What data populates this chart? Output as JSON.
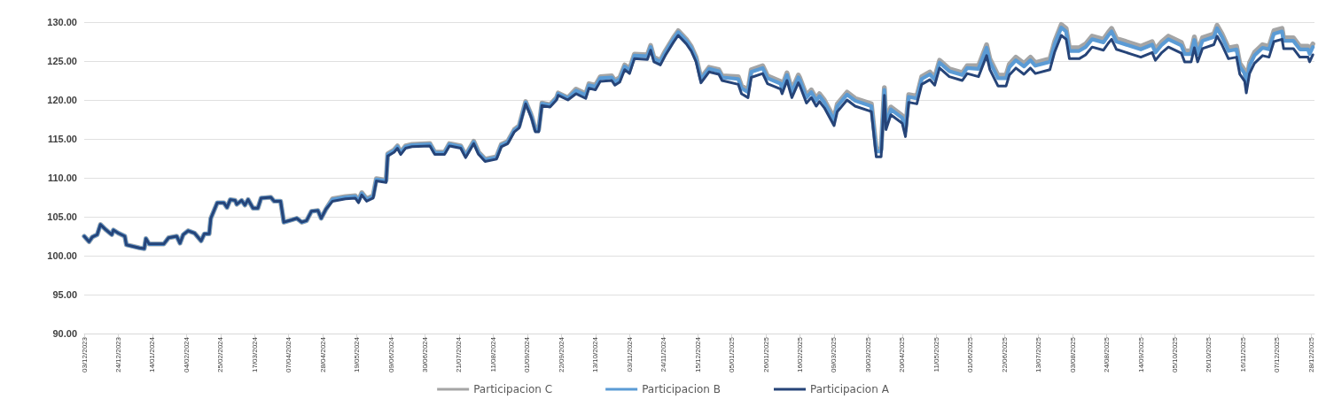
{
  "chart_data": {
    "type": "line",
    "x": [
      "2023-12-03",
      "2023-12-06",
      "2023-12-08",
      "2023-12-11",
      "2023-12-13",
      "2023-12-16",
      "2023-12-20",
      "2023-12-21",
      "2023-12-24",
      "2023-12-28",
      "2023-12-29",
      "2024-01-02",
      "2024-01-06",
      "2024-01-09",
      "2024-01-10",
      "2024-01-12",
      "2024-01-21",
      "2024-01-24",
      "2024-01-29",
      "2024-01-31",
      "2024-02-02",
      "2024-02-05",
      "2024-02-09",
      "2024-02-13",
      "2024-02-15",
      "2024-02-18",
      "2024-02-19",
      "2024-02-23",
      "2024-02-27",
      "2024-02-29",
      "2024-03-02",
      "2024-03-05",
      "2024-03-06",
      "2024-03-09",
      "2024-03-11",
      "2024-03-13",
      "2024-03-16",
      "2024-03-19",
      "2024-03-21",
      "2024-03-27",
      "2024-03-29",
      "2024-04-02",
      "2024-04-04",
      "2024-04-09",
      "2024-04-12",
      "2024-04-15",
      "2024-04-18",
      "2024-04-21",
      "2024-04-25",
      "2024-04-27",
      "2024-04-30",
      "2024-05-04",
      "2024-05-12",
      "2024-05-18",
      "2024-05-20",
      "2024-05-22",
      "2024-05-25",
      "2024-05-29",
      "2024-05-31",
      "2024-06-06",
      "2024-06-07",
      "2024-06-11",
      "2024-06-13",
      "2024-06-15",
      "2024-06-18",
      "2024-06-22",
      "2024-07-03",
      "2024-07-06",
      "2024-07-12",
      "2024-07-15",
      "2024-07-22",
      "2024-07-25",
      "2024-07-30",
      "2024-08-02",
      "2024-08-06",
      "2024-08-13",
      "2024-08-16",
      "2024-08-20",
      "2024-08-24",
      "2024-08-27",
      "2024-08-31",
      "2024-09-03",
      "2024-09-04",
      "2024-09-06",
      "2024-09-08",
      "2024-09-10",
      "2024-09-15",
      "2024-09-19",
      "2024-09-20",
      "2024-09-26",
      "2024-10-01",
      "2024-10-07",
      "2024-10-09",
      "2024-10-13",
      "2024-10-16",
      "2024-10-23",
      "2024-10-25",
      "2024-10-28",
      "2024-10-31",
      "2024-11-03",
      "2024-11-06",
      "2024-11-14",
      "2024-11-16",
      "2024-11-18",
      "2024-11-22",
      "2024-11-25",
      "2024-11-30",
      "2024-12-03",
      "2024-12-08",
      "2024-12-11",
      "2024-12-14",
      "2024-12-17",
      "2024-12-22",
      "2024-12-28",
      "2024-12-30",
      "2025-01-09",
      "2025-01-11",
      "2025-01-15",
      "2025-01-17",
      "2025-01-24",
      "2025-01-27",
      "2025-02-04",
      "2025-02-05",
      "2025-02-08",
      "2025-02-11",
      "2025-02-15",
      "2025-02-16",
      "2025-02-20",
      "2025-02-23",
      "2025-02-26",
      "2025-02-28",
      "2025-03-03",
      "2025-03-09",
      "2025-03-11",
      "2025-03-17",
      "2025-03-22",
      "2025-04-01",
      "2025-04-04",
      "2025-04-07",
      "2025-04-09",
      "2025-04-10",
      "2025-04-13",
      "2025-04-20",
      "2025-04-22",
      "2025-04-24",
      "2025-04-29",
      "2025-05-02",
      "2025-05-07",
      "2025-05-10",
      "2025-05-13",
      "2025-05-19",
      "2025-05-27",
      "2025-05-30",
      "2025-06-06",
      "2025-06-11",
      "2025-06-13",
      "2025-06-18",
      "2025-06-23",
      "2025-06-25",
      "2025-06-29",
      "2025-07-04",
      "2025-07-08",
      "2025-07-11",
      "2025-07-20",
      "2025-07-23",
      "2025-07-27",
      "2025-07-30",
      "2025-08-01",
      "2025-08-07",
      "2025-08-11",
      "2025-08-15",
      "2025-08-22",
      "2025-08-25",
      "2025-08-27",
      "2025-08-30",
      "2025-09-08",
      "2025-09-14",
      "2025-09-21",
      "2025-09-23",
      "2025-09-27",
      "2025-10-01",
      "2025-10-09",
      "2025-10-11",
      "2025-10-15",
      "2025-10-17",
      "2025-10-19",
      "2025-10-22",
      "2025-10-29",
      "2025-10-31",
      "2025-11-03",
      "2025-11-07",
      "2025-11-12",
      "2025-11-14",
      "2025-11-17",
      "2025-11-18",
      "2025-11-20",
      "2025-11-23",
      "2025-11-28",
      "2025-12-02",
      "2025-12-05",
      "2025-12-10",
      "2025-12-11",
      "2025-12-17",
      "2025-12-21",
      "2025-12-26",
      "2025-12-27",
      "2025-12-29"
    ],
    "series": [
      {
        "name": "Participacion C",
        "color": "#a5a5a5",
        "values": [
          102.5,
          101.8,
          102.4,
          102.7,
          104.0,
          103.4,
          102.7,
          103.3,
          102.9,
          102.5,
          101.4,
          101.2,
          101.0,
          100.9,
          102.2,
          101.5,
          101.5,
          102.3,
          102.5,
          101.6,
          102.7,
          103.2,
          102.9,
          101.9,
          102.8,
          102.8,
          104.8,
          106.8,
          106.8,
          106.2,
          107.2,
          107.1,
          106.6,
          107.1,
          106.5,
          107.2,
          106.1,
          106.1,
          107.4,
          107.5,
          107.0,
          107.0,
          104.3,
          104.6,
          104.8,
          104.3,
          104.5,
          105.7,
          105.8,
          104.8,
          106.0,
          107.3,
          107.6,
          107.7,
          107.1,
          108.1,
          107.3,
          107.7,
          109.9,
          109.7,
          113.1,
          113.6,
          114.1,
          113.3,
          114.1,
          114.3,
          114.4,
          113.3,
          113.3,
          114.4,
          114.1,
          112.9,
          114.7,
          113.3,
          112.4,
          112.7,
          114.3,
          114.7,
          116.2,
          116.7,
          119.8,
          118.3,
          117.7,
          116.2,
          116.2,
          119.6,
          119.4,
          120.3,
          120.9,
          120.3,
          121.4,
          120.8,
          122.1,
          121.9,
          123.0,
          123.1,
          122.5,
          122.9,
          124.5,
          124.0,
          125.9,
          125.8,
          127.0,
          125.5,
          125.1,
          126.3,
          128.0,
          128.9,
          127.8,
          126.9,
          125.5,
          122.8,
          124.2,
          123.9,
          123.1,
          123.0,
          121.8,
          121.3,
          123.9,
          124.4,
          123.1,
          122.4,
          121.8,
          123.5,
          121.3,
          123.2,
          122.8,
          120.6,
          121.3,
          120.2,
          120.8,
          120.0,
          117.7,
          119.5,
          121.0,
          120.2,
          119.5,
          113.7,
          113.7,
          121.6,
          117.2,
          119.1,
          118.0,
          116.3,
          120.7,
          120.5,
          123.0,
          123.6,
          122.9,
          125.1,
          124.0,
          123.5,
          124.4,
          124.4,
          127.1,
          125.3,
          123.2,
          123.2,
          124.6,
          125.5,
          124.7,
          125.5,
          124.8,
          125.3,
          127.6,
          129.7,
          129.2,
          126.7,
          126.7,
          127.2,
          128.2,
          127.8,
          128.7,
          129.2,
          127.9,
          127.3,
          126.9,
          127.5,
          126.5,
          127.5,
          128.2,
          127.4,
          126.3,
          126.3,
          128.1,
          126.3,
          128.0,
          128.5,
          129.6,
          128.5,
          126.7,
          126.9,
          124.7,
          123.8,
          122.3,
          124.8,
          126.1,
          127.1,
          126.9,
          128.9,
          129.2,
          128.0,
          128.0,
          126.9,
          126.9,
          126.3,
          127.2
        ]
      },
      {
        "name": "Participacion B",
        "color": "#5b9bd5",
        "values": [
          102.5,
          101.8,
          102.4,
          102.7,
          104.0,
          103.4,
          102.7,
          103.3,
          102.9,
          102.5,
          101.4,
          101.2,
          101.0,
          100.9,
          102.2,
          101.5,
          101.5,
          102.3,
          102.5,
          101.6,
          102.7,
          103.2,
          102.9,
          101.9,
          102.8,
          102.8,
          104.8,
          106.8,
          106.8,
          106.2,
          107.2,
          107.1,
          106.6,
          107.1,
          106.5,
          107.2,
          106.1,
          106.1,
          107.4,
          107.5,
          107.0,
          107.0,
          104.3,
          104.6,
          104.8,
          104.3,
          104.5,
          105.7,
          105.8,
          104.8,
          106.0,
          107.2,
          107.5,
          107.6,
          107.0,
          108.0,
          107.2,
          107.6,
          109.8,
          109.6,
          113.0,
          113.5,
          114.0,
          113.2,
          114.0,
          114.2,
          114.3,
          113.2,
          113.2,
          114.3,
          114.0,
          112.8,
          114.6,
          113.2,
          112.3,
          112.6,
          114.2,
          114.6,
          116.1,
          116.6,
          119.7,
          118.2,
          117.6,
          116.1,
          116.1,
          119.5,
          119.3,
          120.2,
          120.8,
          120.2,
          121.2,
          120.6,
          121.9,
          121.7,
          122.8,
          122.9,
          122.3,
          122.7,
          124.3,
          123.8,
          125.7,
          125.6,
          126.8,
          125.3,
          124.9,
          126.1,
          127.8,
          128.7,
          127.6,
          126.7,
          125.3,
          122.6,
          124.0,
          123.7,
          122.9,
          122.7,
          121.5,
          121.0,
          123.6,
          124.1,
          122.8,
          122.1,
          121.5,
          123.2,
          121.0,
          122.9,
          122.5,
          120.3,
          121.0,
          119.9,
          120.5,
          119.7,
          117.4,
          119.2,
          120.7,
          119.9,
          119.2,
          113.4,
          113.4,
          121.3,
          116.9,
          118.8,
          117.7,
          116.0,
          120.4,
          120.2,
          122.7,
          123.3,
          122.6,
          124.8,
          123.7,
          123.2,
          124.1,
          124.0,
          126.7,
          124.9,
          122.8,
          122.8,
          124.2,
          125.1,
          124.3,
          125.1,
          124.4,
          124.9,
          127.2,
          129.3,
          128.8,
          126.3,
          126.3,
          126.8,
          127.8,
          127.4,
          128.3,
          128.8,
          127.5,
          126.9,
          126.5,
          127.1,
          126.1,
          127.1,
          127.8,
          127.0,
          125.9,
          125.9,
          127.7,
          125.9,
          127.6,
          128.1,
          129.2,
          128.1,
          126.3,
          126.5,
          124.3,
          123.4,
          121.9,
          124.4,
          125.7,
          126.7,
          126.5,
          128.5,
          128.8,
          127.6,
          127.6,
          126.5,
          126.5,
          125.9,
          126.8
        ]
      },
      {
        "name": "Participacion A",
        "color": "#264478",
        "values": [
          102.5,
          101.8,
          102.4,
          102.7,
          104.0,
          103.4,
          102.7,
          103.3,
          102.9,
          102.5,
          101.4,
          101.2,
          101.0,
          100.9,
          102.2,
          101.5,
          101.5,
          102.3,
          102.5,
          101.6,
          102.7,
          103.2,
          102.9,
          101.9,
          102.8,
          102.8,
          104.8,
          106.8,
          106.8,
          106.2,
          107.2,
          107.1,
          106.6,
          107.1,
          106.5,
          107.2,
          106.1,
          106.1,
          107.4,
          107.5,
          107.0,
          107.0,
          104.3,
          104.6,
          104.8,
          104.3,
          104.5,
          105.7,
          105.8,
          104.8,
          106.0,
          107.0,
          107.3,
          107.4,
          106.8,
          107.8,
          107.0,
          107.4,
          109.6,
          109.4,
          112.8,
          113.3,
          113.8,
          113.0,
          113.8,
          114.0,
          114.1,
          113.0,
          113.0,
          114.1,
          113.8,
          112.6,
          114.4,
          113.0,
          112.1,
          112.4,
          114.0,
          114.4,
          115.9,
          116.4,
          119.5,
          118.0,
          117.4,
          115.9,
          115.9,
          119.3,
          119.1,
          120.0,
          120.6,
          120.0,
          120.8,
          120.2,
          121.5,
          121.3,
          122.4,
          122.5,
          121.9,
          122.3,
          123.9,
          123.4,
          125.3,
          125.2,
          126.4,
          124.9,
          124.5,
          125.7,
          127.4,
          128.3,
          127.2,
          126.3,
          124.9,
          122.2,
          123.6,
          123.3,
          122.5,
          122.0,
          120.8,
          120.3,
          122.9,
          123.4,
          122.1,
          121.4,
          120.8,
          122.5,
          120.3,
          122.2,
          121.8,
          119.6,
          120.3,
          119.2,
          119.8,
          119.0,
          116.7,
          118.5,
          120.0,
          119.2,
          118.5,
          112.7,
          112.7,
          120.6,
          116.2,
          118.1,
          117.0,
          115.3,
          119.7,
          119.5,
          122.0,
          122.6,
          121.9,
          124.1,
          123.0,
          122.5,
          123.4,
          123.0,
          125.7,
          123.9,
          121.8,
          121.8,
          123.2,
          124.1,
          123.3,
          124.1,
          123.4,
          123.9,
          126.2,
          128.3,
          127.8,
          125.3,
          125.3,
          125.8,
          126.8,
          126.4,
          127.3,
          127.8,
          126.5,
          125.9,
          125.5,
          126.1,
          125.1,
          126.1,
          126.8,
          126.0,
          124.9,
          124.9,
          126.7,
          124.9,
          126.6,
          127.1,
          128.2,
          127.1,
          125.3,
          125.5,
          123.3,
          122.4,
          120.9,
          123.4,
          124.7,
          125.7,
          125.5,
          127.5,
          127.8,
          126.6,
          126.6,
          125.5,
          125.5,
          124.9,
          125.8
        ]
      }
    ],
    "xlim": [
      "2023-12-03",
      "2025-12-30"
    ],
    "xticks": [
      {
        "value": "2023-12-03",
        "label": "03/12/2023"
      },
      {
        "value": "2023-12-24",
        "label": "24/12/2023"
      },
      {
        "value": "2024-01-14",
        "label": "14/01/2024"
      },
      {
        "value": "2024-02-04",
        "label": "04/02/2024"
      },
      {
        "value": "2024-02-25",
        "label": "25/02/2024"
      },
      {
        "value": "2024-03-17",
        "label": "17/03/2024"
      },
      {
        "value": "2024-04-07",
        "label": "07/04/2024"
      },
      {
        "value": "2024-04-28",
        "label": "28/04/2024"
      },
      {
        "value": "2024-05-19",
        "label": "19/05/2024"
      },
      {
        "value": "2024-06-09",
        "label": "09/06/2024"
      },
      {
        "value": "2024-06-30",
        "label": "30/06/2024"
      },
      {
        "value": "2024-07-21",
        "label": "21/07/2024"
      },
      {
        "value": "2024-08-11",
        "label": "11/08/2024"
      },
      {
        "value": "2024-09-01",
        "label": "01/09/2024"
      },
      {
        "value": "2024-09-22",
        "label": "22/09/2024"
      },
      {
        "value": "2024-10-13",
        "label": "13/10/2024"
      },
      {
        "value": "2024-11-03",
        "label": "03/11/2024"
      },
      {
        "value": "2024-11-24",
        "label": "24/11/2024"
      },
      {
        "value": "2024-12-15",
        "label": "15/12/2024"
      },
      {
        "value": "2025-01-05",
        "label": "05/01/2025"
      },
      {
        "value": "2025-01-26",
        "label": "26/01/2025"
      },
      {
        "value": "2025-02-16",
        "label": "16/02/2025"
      },
      {
        "value": "2025-03-09",
        "label": "09/03/2025"
      },
      {
        "value": "2025-03-30",
        "label": "30/03/2025"
      },
      {
        "value": "2025-04-20",
        "label": "20/04/2025"
      },
      {
        "value": "2025-05-11",
        "label": "11/05/2025"
      },
      {
        "value": "2025-06-01",
        "label": "01/06/2025"
      },
      {
        "value": "2025-06-22",
        "label": "22/06/2025"
      },
      {
        "value": "2025-07-13",
        "label": "13/07/2025"
      },
      {
        "value": "2025-08-03",
        "label": "03/08/2025"
      },
      {
        "value": "2025-08-24",
        "label": "24/08/2025"
      },
      {
        "value": "2025-09-14",
        "label": "14/09/2025"
      },
      {
        "value": "2025-10-05",
        "label": "05/10/2025"
      },
      {
        "value": "2025-10-26",
        "label": "26/10/2025"
      },
      {
        "value": "2025-11-16",
        "label": "16/11/2025"
      },
      {
        "value": "2025-12-07",
        "label": "07/12/2025"
      },
      {
        "value": "2025-12-28",
        "label": "28/12/2025"
      }
    ],
    "ylim": [
      90,
      130
    ],
    "yticks": [
      {
        "value": 90,
        "label": "90.00"
      },
      {
        "value": 95,
        "label": "95.00"
      },
      {
        "value": 100,
        "label": "100.00"
      },
      {
        "value": 105,
        "label": "105.00"
      },
      {
        "value": 110,
        "label": "110.00"
      },
      {
        "value": 115,
        "label": "115.00"
      },
      {
        "value": 120,
        "label": "120.00"
      },
      {
        "value": 125,
        "label": "125.00"
      },
      {
        "value": 130,
        "label": "130.00"
      }
    ],
    "grid": "y",
    "legend": "bottom",
    "marker": "none",
    "line_style": "solid"
  }
}
